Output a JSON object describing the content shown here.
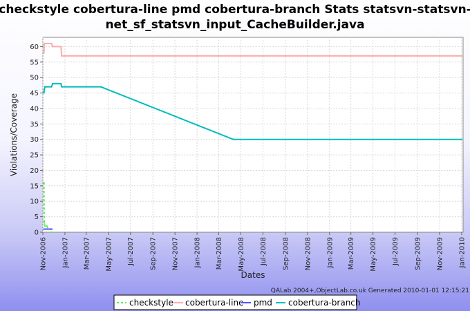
{
  "chart_data": {
    "type": "line",
    "title_lines": [
      "checkstyle cobertura-line pmd cobertura-branch  Stats statsvn-statsvn-",
      "net_sf_statsvn_input_CacheBuilder.java"
    ],
    "xlabel": "Dates",
    "ylabel": "Violations/Coverage",
    "ylim": [
      0,
      63
    ],
    "xlim": [
      "2006-11-01",
      "2010-01-05"
    ],
    "y_ticks": [
      0,
      5,
      10,
      15,
      20,
      25,
      30,
      35,
      40,
      45,
      50,
      55,
      60
    ],
    "x_ticks": [
      {
        "date": "2006-11-01",
        "label": "Nov-2006"
      },
      {
        "date": "2007-01-01",
        "label": "Jan-2007"
      },
      {
        "date": "2007-03-01",
        "label": "Mar-2007"
      },
      {
        "date": "2007-05-01",
        "label": "May-2007"
      },
      {
        "date": "2007-07-01",
        "label": "Jul-2007"
      },
      {
        "date": "2007-09-01",
        "label": "Sep-2007"
      },
      {
        "date": "2007-11-01",
        "label": "Nov-2007"
      },
      {
        "date": "2008-01-01",
        "label": "Jan-2008"
      },
      {
        "date": "2008-03-01",
        "label": "Mar-2008"
      },
      {
        "date": "2008-05-01",
        "label": "May-2008"
      },
      {
        "date": "2008-07-01",
        "label": "Jul-2008"
      },
      {
        "date": "2008-09-01",
        "label": "Sep-2008"
      },
      {
        "date": "2008-11-01",
        "label": "Nov-2008"
      },
      {
        "date": "2009-01-01",
        "label": "Jan-2009"
      },
      {
        "date": "2009-03-01",
        "label": "Mar-2009"
      },
      {
        "date": "2009-05-01",
        "label": "May-2009"
      },
      {
        "date": "2009-07-01",
        "label": "Jul-2009"
      },
      {
        "date": "2009-09-01",
        "label": "Sep-2009"
      },
      {
        "date": "2009-11-01",
        "label": "Nov-2009"
      },
      {
        "date": "2010-01-01",
        "label": "Jan-2010"
      }
    ],
    "grid": true,
    "legend_position": "bottom",
    "credit": "QALab 2004+,ObjectLab.co.uk Generated 2010-01-01 12:15:21",
    "series": [
      {
        "name": "checkstyle",
        "color": "#55ee55",
        "dashed": true,
        "points": [
          [
            "2006-11-04",
            16
          ],
          [
            "2006-11-05",
            3
          ],
          [
            "2006-11-07",
            2
          ],
          [
            "2006-11-12",
            2
          ],
          [
            "2006-11-16",
            1
          ],
          [
            "2006-11-22",
            1
          ],
          [
            "2006-11-26",
            0
          ]
        ]
      },
      {
        "name": "cobertura-line",
        "color": "#ffaaaa",
        "dashed": false,
        "points": [
          [
            "2006-11-04",
            58
          ],
          [
            "2006-11-05",
            61
          ],
          [
            "2006-11-25",
            61
          ],
          [
            "2006-11-28",
            60
          ],
          [
            "2006-12-21",
            60
          ],
          [
            "2006-12-23",
            57
          ],
          [
            "2010-01-01",
            57
          ]
        ]
      },
      {
        "name": "pmd",
        "color": "#5555ff",
        "dashed": false,
        "points": [
          [
            "2006-11-04",
            1
          ],
          [
            "2006-11-22",
            1
          ],
          [
            "2006-11-26",
            1
          ]
        ]
      },
      {
        "name": "cobertura-branch",
        "color": "#00bbbb",
        "dashed": false,
        "points": [
          [
            "2006-11-04",
            45
          ],
          [
            "2006-11-05",
            46
          ],
          [
            "2006-11-07",
            47
          ],
          [
            "2006-11-25",
            47
          ],
          [
            "2006-11-28",
            48
          ],
          [
            "2006-12-21",
            48
          ],
          [
            "2006-12-23",
            47
          ],
          [
            "2007-04-10",
            47
          ],
          [
            "2008-04-10",
            30
          ],
          [
            "2010-01-01",
            30
          ]
        ]
      }
    ]
  }
}
